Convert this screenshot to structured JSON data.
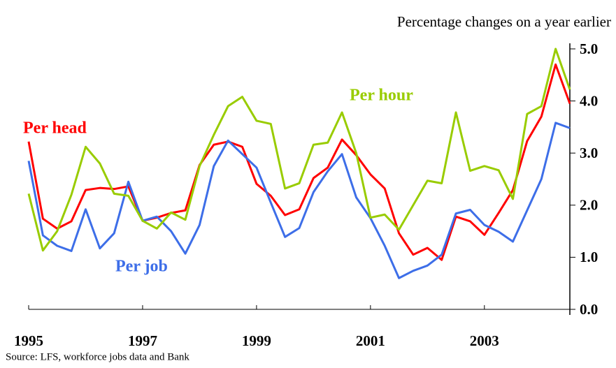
{
  "chart_data": {
    "type": "line",
    "title": "Percentage changes on a year earlier",
    "source": "Source: LFS, workforce jobs data and Bank",
    "x": [
      1995,
      1995.25,
      1995.5,
      1995.75,
      1996,
      1996.25,
      1996.5,
      1996.75,
      1997,
      1997.25,
      1997.5,
      1997.75,
      1998,
      1998.25,
      1998.5,
      1998.75,
      1999,
      1999.25,
      1999.5,
      1999.75,
      2000,
      2000.25,
      2000.5,
      2000.75,
      2001,
      2001.25,
      2001.5,
      2001.75,
      2002,
      2002.25,
      2002.5,
      2002.75,
      2003,
      2003.25,
      2003.5,
      2003.75,
      2004,
      2004.25,
      2004.5
    ],
    "series": [
      {
        "name": "Per head",
        "color": "#ff0000",
        "values": [
          3.22,
          1.74,
          1.55,
          1.69,
          2.29,
          2.33,
          2.31,
          2.36,
          1.7,
          1.76,
          1.85,
          1.9,
          2.77,
          3.16,
          3.22,
          3.12,
          2.41,
          2.18,
          1.81,
          1.92,
          2.52,
          2.72,
          3.26,
          2.96,
          2.59,
          2.32,
          1.46,
          1.05,
          1.18,
          0.95,
          1.78,
          1.69,
          1.43,
          1.85,
          2.29,
          3.23,
          3.7,
          4.7,
          3.95
        ]
      },
      {
        "name": "Per job",
        "color": "#3d6ee8",
        "values": [
          2.85,
          1.42,
          1.22,
          1.12,
          1.92,
          1.17,
          1.46,
          2.45,
          1.7,
          1.78,
          1.5,
          1.07,
          1.62,
          2.75,
          3.24,
          2.98,
          2.72,
          2.05,
          1.39,
          1.56,
          2.25,
          2.65,
          2.98,
          2.15,
          1.75,
          1.22,
          0.6,
          0.74,
          0.84,
          1.05,
          1.84,
          1.91,
          1.62,
          1.49,
          1.3,
          1.9,
          2.5,
          3.58,
          3.48
        ]
      },
      {
        "name": "Per hour",
        "color": "#99cc00",
        "values": [
          2.22,
          1.13,
          1.5,
          2.2,
          3.12,
          2.8,
          2.22,
          2.18,
          1.7,
          1.55,
          1.86,
          1.72,
          2.75,
          3.35,
          3.9,
          4.08,
          3.62,
          3.56,
          2.32,
          2.42,
          3.16,
          3.2,
          3.78,
          3.0,
          1.76,
          1.82,
          1.53,
          2.0,
          2.47,
          2.42,
          3.78,
          2.66,
          2.75,
          2.67,
          2.12,
          3.75,
          3.9,
          5.0,
          4.22
        ]
      }
    ],
    "xlim": [
      1995,
      2004.5
    ],
    "xticks": [
      1995,
      1997,
      1999,
      2001,
      2003
    ],
    "ylim": [
      0,
      5
    ],
    "yticks": [
      {
        "value": 0,
        "label": "0.0"
      },
      {
        "value": 1,
        "label": "1.0"
      },
      {
        "value": 2,
        "label": "2.0"
      },
      {
        "value": 3,
        "label": "3.0"
      },
      {
        "value": 4,
        "label": "4.0"
      },
      {
        "value": 5,
        "label": "5.0"
      }
    ],
    "grid": false
  }
}
